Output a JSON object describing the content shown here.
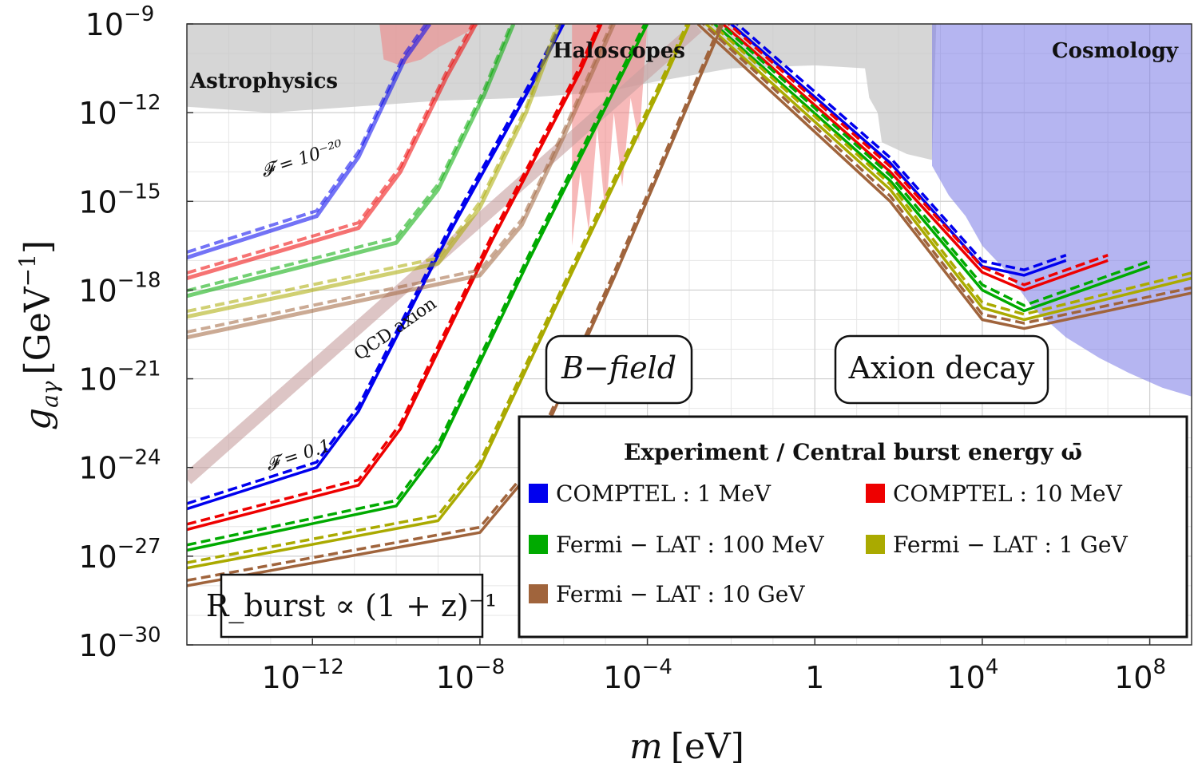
{
  "chart_data": {
    "type": "line",
    "xlabel": "m [eV]",
    "ylabel": "g_aγ [GeV⁻¹]",
    "x_scale": "log10",
    "y_scale": "log10",
    "xlim_log10": [
      -15,
      9
    ],
    "ylim_log10": [
      -30,
      -9
    ],
    "x_ticks": [
      {
        "base": "10",
        "exp": "−12",
        "v": -12
      },
      {
        "base": "10",
        "exp": "−8",
        "v": -8
      },
      {
        "base": "10",
        "exp": "−4",
        "v": -4
      },
      {
        "base": "1",
        "exp": "",
        "v": 0
      },
      {
        "base": "10",
        "exp": "4",
        "v": 4
      },
      {
        "base": "10",
        "exp": "8",
        "v": 8
      }
    ],
    "y_ticks": [
      {
        "base": "10",
        "exp": "−9",
        "v": -9
      },
      {
        "base": "10",
        "exp": "−12",
        "v": -12
      },
      {
        "base": "10",
        "exp": "−15",
        "v": -15
      },
      {
        "base": "10",
        "exp": "−18",
        "v": -18
      },
      {
        "base": "10",
        "exp": "−21",
        "v": -21
      },
      {
        "base": "10",
        "exp": "−24",
        "v": -24
      },
      {
        "base": "10",
        "exp": "−27",
        "v": -27
      },
      {
        "base": "10",
        "exp": "−30",
        "v": -30
      }
    ],
    "grid": true,
    "regions": [
      {
        "name": "Astrophysics",
        "color": "#c8c8c8",
        "label": "Astrophysics"
      },
      {
        "name": "Haloscopes",
        "color": "#f08080",
        "label": "Haloscopes"
      },
      {
        "name": "Cosmology",
        "color": "#7878e6",
        "label": "Cosmology"
      }
    ],
    "qcd_band": {
      "label": "QCD axion",
      "color": "#c8a0a0",
      "points": [
        [
          -15,
          -24.4
        ],
        [
          -2.8,
          -9.1
        ]
      ]
    },
    "annotations": {
      "f_high": "𝓕 = 10⁻²⁰",
      "f_low": "𝓕 = 0.1",
      "bfield": "B−field",
      "decay": "Axion decay",
      "rate": "R_burst ∝ (1 + z)⁻¹"
    },
    "legend": {
      "title": "Experiment / Central burst energy ω̄",
      "position": "bottom-right"
    },
    "series": [
      {
        "name": "COMPTEL : 1 MeV",
        "color": "#0000ee",
        "bfield_F_high": [
          [
            -15,
            -16.9
          ],
          [
            -11.9,
            -15.5
          ],
          [
            -10.9,
            -13.5
          ],
          [
            -9.8,
            -10.2
          ],
          [
            -9.2,
            -9.0
          ]
        ],
        "bfield_F_low": [
          [
            -15,
            -25.4
          ],
          [
            -11.9,
            -24.0
          ],
          [
            -10.9,
            -22.1
          ],
          [
            -8.7,
            -16.0
          ],
          [
            -6.7,
            -10.9
          ],
          [
            -6.0,
            -9.0
          ]
        ],
        "decay": [
          [
            -2.0,
            -9.0
          ],
          [
            1.8,
            -13.7
          ],
          [
            4.0,
            -17.2
          ],
          [
            5.0,
            -17.5
          ],
          [
            6.0,
            -17.0
          ]
        ]
      },
      {
        "name": "COMPTEL : 10 MeV",
        "color": "#ee0000",
        "bfield_F_high": [
          [
            -15,
            -17.6
          ],
          [
            -10.9,
            -15.9
          ],
          [
            -9.9,
            -14.0
          ],
          [
            -8.8,
            -10.8
          ],
          [
            -8.1,
            -9.0
          ]
        ],
        "bfield_F_low": [
          [
            -15,
            -26.1
          ],
          [
            -10.9,
            -24.6
          ],
          [
            -9.9,
            -22.7
          ],
          [
            -7.7,
            -16.3
          ],
          [
            -5.6,
            -10.6
          ],
          [
            -5.1,
            -9.0
          ]
        ],
        "decay": [
          [
            -2.2,
            -9.0
          ],
          [
            1.8,
            -14.0
          ],
          [
            4.0,
            -17.4
          ],
          [
            5.0,
            -18.0
          ],
          [
            7.0,
            -17.0
          ]
        ]
      },
      {
        "name": "Fermi − LAT : 100 MeV",
        "color": "#00aa00",
        "bfield_F_high": [
          [
            -15,
            -18.2
          ],
          [
            -10.0,
            -16.4
          ],
          [
            -9.0,
            -14.6
          ],
          [
            -7.9,
            -11.4
          ],
          [
            -7.2,
            -9.0
          ]
        ],
        "bfield_F_low": [
          [
            -15,
            -26.8
          ],
          [
            -10.0,
            -25.3
          ],
          [
            -9.0,
            -23.4
          ],
          [
            -6.8,
            -16.9
          ],
          [
            -4.6,
            -10.7
          ],
          [
            -4.0,
            -9.0
          ]
        ],
        "decay": [
          [
            -2.4,
            -9.0
          ],
          [
            1.8,
            -14.3
          ],
          [
            4.0,
            -18.0
          ],
          [
            5.0,
            -18.7
          ],
          [
            8.0,
            -17.2
          ]
        ]
      },
      {
        "name": "Fermi − LAT : 1 GeV",
        "color": "#aaaa00",
        "bfield_F_high": [
          [
            -15,
            -18.9
          ],
          [
            -9.0,
            -17.1
          ],
          [
            -8.0,
            -15.2
          ],
          [
            -6.9,
            -12.0
          ],
          [
            -6.1,
            -9.0
          ]
        ],
        "bfield_F_low": [
          [
            -15,
            -27.4
          ],
          [
            -9.0,
            -25.8
          ],
          [
            -8.0,
            -24.0
          ],
          [
            -5.8,
            -17.4
          ],
          [
            -3.7,
            -11.2
          ],
          [
            -3.0,
            -9.0
          ]
        ],
        "decay": [
          [
            -2.6,
            -9.0
          ],
          [
            1.8,
            -14.6
          ],
          [
            4.0,
            -18.6
          ],
          [
            5.0,
            -19.0
          ],
          [
            9.0,
            -17.6
          ]
        ]
      },
      {
        "name": "Fermi − LAT : 10 GeV",
        "color": "#a0643c",
        "bfield_F_high": [
          [
            -15,
            -19.6
          ],
          [
            -8.0,
            -17.5
          ],
          [
            -7.0,
            -15.8
          ],
          [
            -6.0,
            -12.8
          ],
          [
            -4.8,
            -9.0
          ]
        ],
        "bfield_F_low": [
          [
            -15,
            -28.0
          ],
          [
            -8.0,
            -26.2
          ],
          [
            -7.0,
            -24.5
          ],
          [
            -4.8,
            -17.6
          ],
          [
            -2.2,
            -9.0
          ]
        ],
        "decay": [
          [
            -2.8,
            -9.0
          ],
          [
            1.8,
            -15.0
          ],
          [
            4.0,
            -19.0
          ],
          [
            5.0,
            -19.3
          ],
          [
            9.0,
            -18.1
          ]
        ]
      }
    ]
  }
}
